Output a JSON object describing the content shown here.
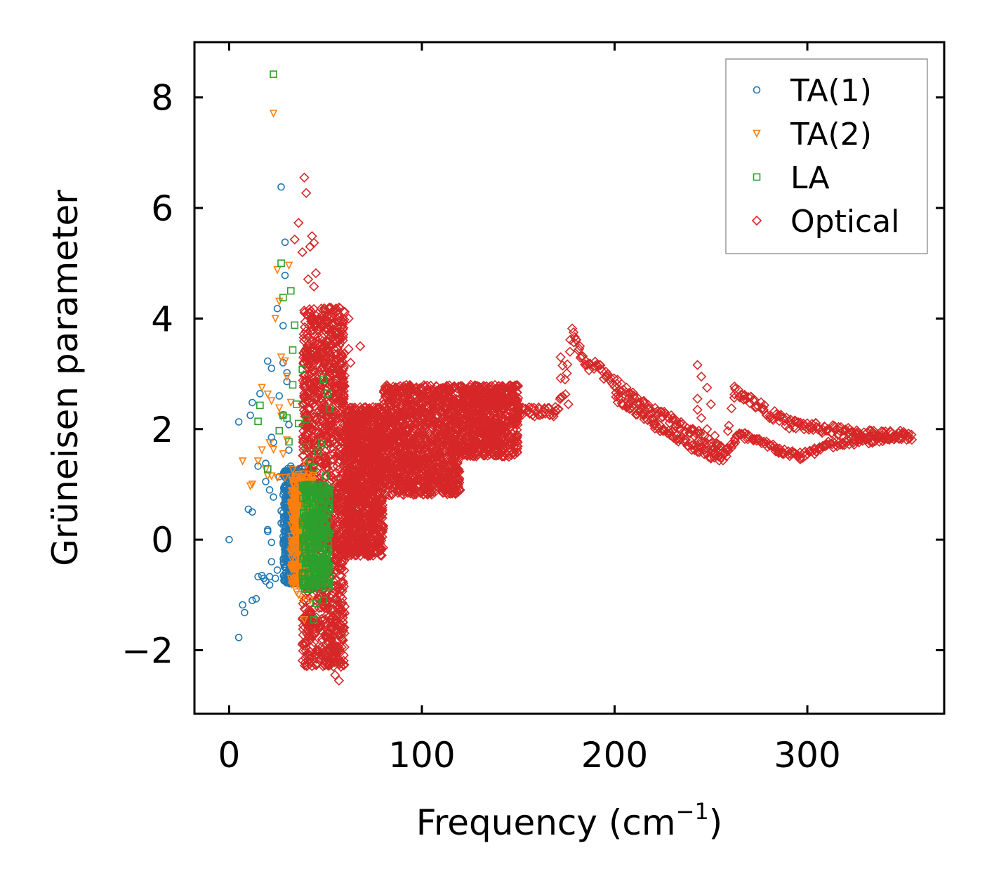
{
  "chart_data": {
    "type": "scatter",
    "title": "",
    "xlabel": "Frequency (cm",
    "xlabel_sup": "−1",
    "xlabel_end": ")",
    "ylabel": "Grüneisen parameter",
    "xlim": [
      -18,
      371
    ],
    "ylim": [
      -3.15,
      9.0
    ],
    "xticks": [
      0,
      100,
      200,
      300
    ],
    "xtick_labels": [
      "0",
      "100",
      "200",
      "300"
    ],
    "yticks": [
      -2,
      0,
      2,
      4,
      6,
      8
    ],
    "ytick_labels": [
      "−2",
      "0",
      "2",
      "4",
      "6",
      "8"
    ],
    "legend_position": "top-right",
    "series": [
      {
        "name": "TA(1)",
        "marker": "circle",
        "color": "#1f77b4",
        "points": [
          [
            0,
            0
          ],
          [
            5,
            2.13
          ],
          [
            5,
            -1.77
          ],
          [
            7,
            -1.18
          ],
          [
            8,
            -1.32
          ],
          [
            10,
            0.55
          ],
          [
            11,
            2.25
          ],
          [
            12,
            -1.1
          ],
          [
            12,
            0.5
          ],
          [
            12,
            2.48
          ],
          [
            14,
            -1.07
          ],
          [
            15,
            -0.67
          ],
          [
            15,
            1.33
          ],
          [
            16,
            2.64
          ],
          [
            17,
            -0.65
          ],
          [
            18,
            -0.7
          ],
          [
            19,
            1.05
          ],
          [
            19,
            1.38
          ],
          [
            19,
            -0.75
          ],
          [
            20,
            3.23
          ],
          [
            20,
            0.18
          ],
          [
            20,
            0.15
          ],
          [
            21,
            0.9
          ],
          [
            21,
            -0.82
          ],
          [
            21,
            -0.67
          ],
          [
            22,
            -0.05
          ],
          [
            22,
            -0.4
          ],
          [
            22,
            3.1
          ],
          [
            22,
            1.85
          ],
          [
            23,
            0.77
          ],
          [
            23,
            1.76
          ],
          [
            24,
            -0.7
          ],
          [
            25,
            4.18
          ],
          [
            25,
            -0.55
          ],
          [
            26,
            2.6
          ],
          [
            26,
            1.14
          ],
          [
            27,
            6.38
          ],
          [
            27,
            0.3
          ],
          [
            27,
            0.52
          ],
          [
            28,
            3.87
          ],
          [
            28,
            3.2
          ],
          [
            28,
            2.26
          ],
          [
            29,
            5.38
          ],
          [
            29,
            4.78
          ],
          [
            29,
            0.98
          ],
          [
            29,
            -0.73
          ],
          [
            30,
            3.02
          ],
          [
            30,
            2.86
          ],
          [
            30,
            0.82
          ],
          [
            31,
            2.08
          ],
          [
            31,
            1.62
          ],
          [
            31,
            0.1
          ],
          [
            31,
            -0.43
          ],
          [
            32,
            1.33
          ],
          [
            32,
            0.62
          ],
          [
            32,
            -0.57
          ],
          [
            33,
            1.15
          ],
          [
            33,
            0.35
          ],
          [
            33,
            -0.2
          ],
          [
            34,
            0.86
          ],
          [
            34,
            0.04
          ],
          [
            34,
            -0.6
          ]
        ],
        "cluster": {
          "x_range": [
            28,
            38
          ],
          "y_range": [
            -0.8,
            1.3
          ],
          "count": 520
        }
      },
      {
        "name": "TA(2)",
        "marker": "triangle-down",
        "color": "#ff7f0e",
        "points": [
          [
            23,
            7.71
          ],
          [
            7,
            1.42
          ],
          [
            11,
            0.97
          ],
          [
            12,
            1.0
          ],
          [
            15,
            1.42
          ],
          [
            17,
            2.75
          ],
          [
            17,
            1.62
          ],
          [
            19,
            1.27
          ],
          [
            20,
            2.63
          ],
          [
            20,
            1.15
          ],
          [
            21,
            1.75
          ],
          [
            22,
            2.51
          ],
          [
            22,
            1.15
          ],
          [
            23,
            1.63
          ],
          [
            24,
            4.0
          ],
          [
            25,
            4.88
          ],
          [
            25,
            1.12
          ],
          [
            26,
            4.31
          ],
          [
            26,
            2.38
          ],
          [
            27,
            3.3
          ],
          [
            27,
            2.23
          ],
          [
            28,
            1.55
          ],
          [
            29,
            3.23
          ],
          [
            29,
            1.12
          ],
          [
            30,
            2.95
          ],
          [
            30,
            1.8
          ],
          [
            31,
            4.96
          ],
          [
            32,
            2.48
          ],
          [
            33,
            1.26
          ],
          [
            34,
            -0.75
          ],
          [
            35,
            -0.95
          ],
          [
            36,
            -1.0
          ],
          [
            38,
            -1.08
          ],
          [
            39,
            -1.45
          ],
          [
            40,
            1.35
          ],
          [
            41,
            -0.6
          ],
          [
            42,
            -1.1
          ]
        ],
        "cluster": {
          "x_range": [
            32,
            44
          ],
          "y_range": [
            -0.85,
            1.2
          ],
          "count": 420
        }
      },
      {
        "name": "LA",
        "marker": "square",
        "color": "#2ca02c",
        "points": [
          [
            23,
            8.42
          ],
          [
            15,
            2.14
          ],
          [
            16,
            2.43
          ],
          [
            20,
            1.28
          ],
          [
            26,
            1.97
          ],
          [
            27,
            5.0
          ],
          [
            28,
            4.38
          ],
          [
            28,
            2.25
          ],
          [
            30,
            2.2
          ],
          [
            31,
            1.77
          ],
          [
            32,
            4.5
          ],
          [
            33,
            3.43
          ],
          [
            33,
            2.8
          ],
          [
            34,
            3.88
          ],
          [
            35,
            2.45
          ],
          [
            36,
            2.1
          ],
          [
            38,
            3.08
          ],
          [
            40,
            2.18
          ],
          [
            40,
            1.68
          ],
          [
            42,
            1.42
          ],
          [
            44,
            -1.45
          ],
          [
            45,
            -1.15
          ],
          [
            46,
            1.58
          ],
          [
            47,
            0.45
          ],
          [
            48,
            -0.7
          ],
          [
            48,
            1.75
          ],
          [
            49,
            -1.1
          ],
          [
            49,
            2.9
          ],
          [
            50,
            1.15
          ],
          [
            51,
            2.65
          ],
          [
            52,
            0.58
          ],
          [
            52,
            2.37
          ],
          [
            44,
            1.3
          ],
          [
            46,
            1.0
          ],
          [
            42,
            0.75
          ]
        ],
        "cluster": {
          "x_range": [
            38,
            52
          ],
          "y_range": [
            -0.9,
            1.0
          ],
          "count": 360
        }
      },
      {
        "name": "Optical",
        "marker": "diamond",
        "color": "#d62728",
        "points": [
          [
            39,
            6.55
          ],
          [
            40,
            6.27
          ],
          [
            36,
            5.73
          ],
          [
            43,
            5.49
          ],
          [
            34,
            5.43
          ],
          [
            44,
            5.37
          ],
          [
            42,
            5.3
          ],
          [
            38,
            5.2
          ],
          [
            45,
            4.82
          ],
          [
            41,
            4.71
          ],
          [
            44,
            4.58
          ],
          [
            42,
            4.1
          ],
          [
            52,
            4.2
          ],
          [
            57,
            4.2
          ],
          [
            60,
            4.12
          ],
          [
            62,
            4.0
          ],
          [
            48,
            3.85
          ],
          [
            55,
            3.55
          ],
          [
            62,
            3.45
          ],
          [
            68,
            3.5
          ],
          [
            63,
            3.2
          ],
          [
            58,
            2.6
          ],
          [
            52,
            -1.85
          ],
          [
            54,
            -2.1
          ],
          [
            55,
            -2.45
          ],
          [
            57,
            -2.55
          ],
          [
            58,
            -2.3
          ],
          [
            56,
            -1.6
          ],
          [
            172,
            3.3
          ],
          [
            173,
            3.15
          ],
          [
            172,
            2.92
          ],
          [
            172,
            2.57
          ],
          [
            176,
            2.45
          ],
          [
            178,
            3.82
          ],
          [
            180,
            3.62
          ],
          [
            182,
            3.5
          ],
          [
            185,
            3.15
          ],
          [
            243,
            3.16
          ],
          [
            245,
            2.95
          ],
          [
            243,
            2.55
          ],
          [
            243,
            2.35
          ],
          [
            248,
            2.75
          ],
          [
            250,
            2.45
          ],
          [
            245,
            2.2
          ],
          [
            248,
            2.0
          ],
          [
            252,
            1.88
          ],
          [
            350,
            1.95
          ],
          [
            354,
            1.9
          ]
        ],
        "bands": [
          {
            "x_range": [
              38,
              60
            ],
            "y_range": [
              -2.3,
              4.2
            ],
            "count": 1400
          },
          {
            "x_range": [
              60,
              80
            ],
            "y_range": [
              -0.3,
              2.4
            ],
            "count": 1100
          },
          {
            "x_range": [
              80,
              120
            ],
            "y_range": [
              0.8,
              2.8
            ],
            "count": 1200
          },
          {
            "x_range": [
              120,
              150
            ],
            "y_range": [
              1.5,
              2.8
            ],
            "count": 700
          }
        ],
        "curve": [
          [
            150,
            2.35
          ],
          [
            160,
            2.3
          ],
          [
            170,
            2.32
          ],
          [
            174,
            2.7
          ],
          [
            178,
            3.7
          ],
          [
            182,
            3.4
          ],
          [
            186,
            3.1
          ],
          [
            190,
            3.2
          ],
          [
            195,
            2.95
          ],
          [
            200,
            2.85
          ],
          [
            210,
            2.55
          ],
          [
            220,
            2.35
          ],
          [
            230,
            2.15
          ],
          [
            240,
            1.95
          ],
          [
            250,
            1.75
          ],
          [
            258,
            1.55
          ],
          [
            262,
            2.7
          ],
          [
            270,
            2.55
          ],
          [
            280,
            2.3
          ],
          [
            290,
            2.1
          ],
          [
            300,
            2.05
          ],
          [
            310,
            2.0
          ],
          [
            320,
            1.95
          ],
          [
            330,
            1.92
          ],
          [
            340,
            1.88
          ],
          [
            350,
            1.9
          ],
          [
            355,
            1.88
          ]
        ],
        "curve_lower": [
          [
            200,
            2.6
          ],
          [
            220,
            2.1
          ],
          [
            240,
            1.7
          ],
          [
            255,
            1.45
          ],
          [
            265,
            1.9
          ],
          [
            280,
            1.7
          ],
          [
            295,
            1.5
          ],
          [
            310,
            1.7
          ],
          [
            330,
            1.8
          ],
          [
            350,
            1.85
          ]
        ]
      }
    ]
  }
}
